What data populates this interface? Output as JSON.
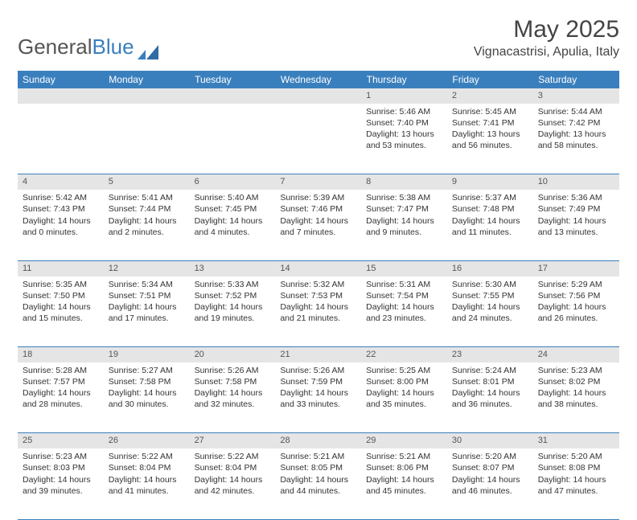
{
  "brand": {
    "part1": "General",
    "part2": "Blue"
  },
  "title": "May 2025",
  "location": "Vignacastrisi, Apulia, Italy",
  "colors": {
    "header_bg": "#3a7fbd",
    "daynum_bg": "#e5e5e5",
    "text": "#333333",
    "border": "#3a7fbd"
  },
  "day_headers": [
    "Sunday",
    "Monday",
    "Tuesday",
    "Wednesday",
    "Thursday",
    "Friday",
    "Saturday"
  ],
  "weeks": [
    {
      "nums": [
        "",
        "",
        "",
        "",
        "1",
        "2",
        "3"
      ],
      "sunrise": [
        "",
        "",
        "",
        "",
        "Sunrise: 5:46 AM",
        "Sunrise: 5:45 AM",
        "Sunrise: 5:44 AM"
      ],
      "sunset": [
        "",
        "",
        "",
        "",
        "Sunset: 7:40 PM",
        "Sunset: 7:41 PM",
        "Sunset: 7:42 PM"
      ],
      "daylight": [
        "",
        "",
        "",
        "",
        "Daylight: 13 hours and 53 minutes.",
        "Daylight: 13 hours and 56 minutes.",
        "Daylight: 13 hours and 58 minutes."
      ]
    },
    {
      "nums": [
        "4",
        "5",
        "6",
        "7",
        "8",
        "9",
        "10"
      ],
      "sunrise": [
        "Sunrise: 5:42 AM",
        "Sunrise: 5:41 AM",
        "Sunrise: 5:40 AM",
        "Sunrise: 5:39 AM",
        "Sunrise: 5:38 AM",
        "Sunrise: 5:37 AM",
        "Sunrise: 5:36 AM"
      ],
      "sunset": [
        "Sunset: 7:43 PM",
        "Sunset: 7:44 PM",
        "Sunset: 7:45 PM",
        "Sunset: 7:46 PM",
        "Sunset: 7:47 PM",
        "Sunset: 7:48 PM",
        "Sunset: 7:49 PM"
      ],
      "daylight": [
        "Daylight: 14 hours and 0 minutes.",
        "Daylight: 14 hours and 2 minutes.",
        "Daylight: 14 hours and 4 minutes.",
        "Daylight: 14 hours and 7 minutes.",
        "Daylight: 14 hours and 9 minutes.",
        "Daylight: 14 hours and 11 minutes.",
        "Daylight: 14 hours and 13 minutes."
      ]
    },
    {
      "nums": [
        "11",
        "12",
        "13",
        "14",
        "15",
        "16",
        "17"
      ],
      "sunrise": [
        "Sunrise: 5:35 AM",
        "Sunrise: 5:34 AM",
        "Sunrise: 5:33 AM",
        "Sunrise: 5:32 AM",
        "Sunrise: 5:31 AM",
        "Sunrise: 5:30 AM",
        "Sunrise: 5:29 AM"
      ],
      "sunset": [
        "Sunset: 7:50 PM",
        "Sunset: 7:51 PM",
        "Sunset: 7:52 PM",
        "Sunset: 7:53 PM",
        "Sunset: 7:54 PM",
        "Sunset: 7:55 PM",
        "Sunset: 7:56 PM"
      ],
      "daylight": [
        "Daylight: 14 hours and 15 minutes.",
        "Daylight: 14 hours and 17 minutes.",
        "Daylight: 14 hours and 19 minutes.",
        "Daylight: 14 hours and 21 minutes.",
        "Daylight: 14 hours and 23 minutes.",
        "Daylight: 14 hours and 24 minutes.",
        "Daylight: 14 hours and 26 minutes."
      ]
    },
    {
      "nums": [
        "18",
        "19",
        "20",
        "21",
        "22",
        "23",
        "24"
      ],
      "sunrise": [
        "Sunrise: 5:28 AM",
        "Sunrise: 5:27 AM",
        "Sunrise: 5:26 AM",
        "Sunrise: 5:26 AM",
        "Sunrise: 5:25 AM",
        "Sunrise: 5:24 AM",
        "Sunrise: 5:23 AM"
      ],
      "sunset": [
        "Sunset: 7:57 PM",
        "Sunset: 7:58 PM",
        "Sunset: 7:58 PM",
        "Sunset: 7:59 PM",
        "Sunset: 8:00 PM",
        "Sunset: 8:01 PM",
        "Sunset: 8:02 PM"
      ],
      "daylight": [
        "Daylight: 14 hours and 28 minutes.",
        "Daylight: 14 hours and 30 minutes.",
        "Daylight: 14 hours and 32 minutes.",
        "Daylight: 14 hours and 33 minutes.",
        "Daylight: 14 hours and 35 minutes.",
        "Daylight: 14 hours and 36 minutes.",
        "Daylight: 14 hours and 38 minutes."
      ]
    },
    {
      "nums": [
        "25",
        "26",
        "27",
        "28",
        "29",
        "30",
        "31"
      ],
      "sunrise": [
        "Sunrise: 5:23 AM",
        "Sunrise: 5:22 AM",
        "Sunrise: 5:22 AM",
        "Sunrise: 5:21 AM",
        "Sunrise: 5:21 AM",
        "Sunrise: 5:20 AM",
        "Sunrise: 5:20 AM"
      ],
      "sunset": [
        "Sunset: 8:03 PM",
        "Sunset: 8:04 PM",
        "Sunset: 8:04 PM",
        "Sunset: 8:05 PM",
        "Sunset: 8:06 PM",
        "Sunset: 8:07 PM",
        "Sunset: 8:08 PM"
      ],
      "daylight": [
        "Daylight: 14 hours and 39 minutes.",
        "Daylight: 14 hours and 41 minutes.",
        "Daylight: 14 hours and 42 minutes.",
        "Daylight: 14 hours and 44 minutes.",
        "Daylight: 14 hours and 45 minutes.",
        "Daylight: 14 hours and 46 minutes.",
        "Daylight: 14 hours and 47 minutes."
      ]
    }
  ]
}
